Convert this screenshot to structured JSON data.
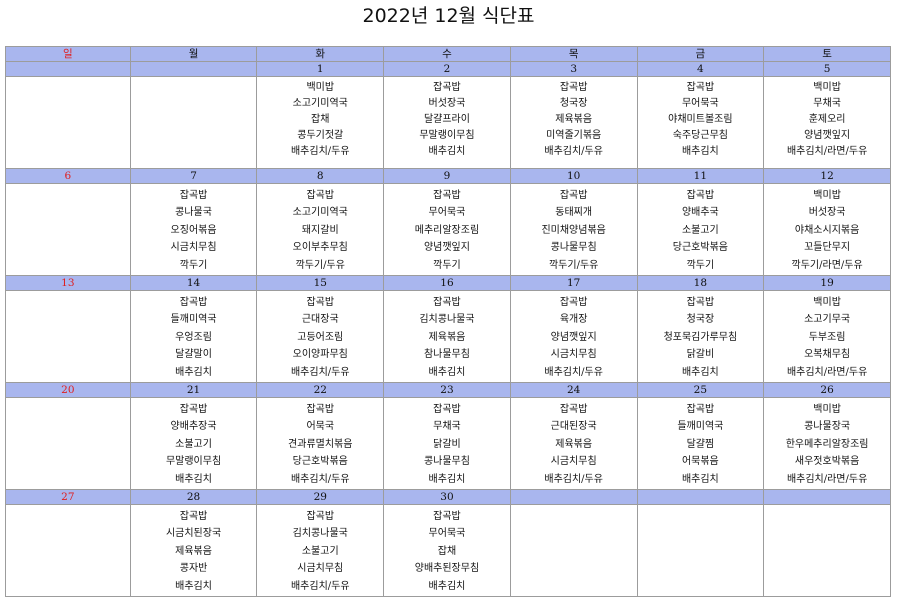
{
  "title": "2022년 12월 식단표",
  "weekdays": [
    "일",
    "월",
    "화",
    "수",
    "목",
    "금",
    "토"
  ],
  "weeks": [
    {
      "dates": [
        "",
        "",
        "1",
        "2",
        "3",
        "4",
        "5"
      ],
      "menus": [
        [],
        [],
        [
          "백미밥",
          "소고기미역국",
          "잡채",
          "콩두기젓갈",
          "배추김치/두유"
        ],
        [
          "잡곡밥",
          "버섯장국",
          "달걀프라이",
          "무말랭이무침",
          "배추김치"
        ],
        [
          "잡곡밥",
          "청국장",
          "제육볶음",
          "미역줄기볶음",
          "배추김치/두유"
        ],
        [
          "잡곡밥",
          "무어묵국",
          "야채미트볼조림",
          "숙주당근무침",
          "배추김치"
        ],
        [
          "백미밥",
          "무채국",
          "훈제오리",
          "양념깻잎지",
          "배추김치/라면/두유"
        ]
      ]
    },
    {
      "dates": [
        "6",
        "7",
        "8",
        "9",
        "10",
        "11",
        "12"
      ],
      "menus": [
        [],
        [
          "잡곡밥",
          "콩나물국",
          "오징어볶음",
          "시금치무침",
          "깍두기"
        ],
        [
          "잡곡밥",
          "소고기미역국",
          "돼지갈비",
          "오이부추무침",
          "깍두기/두유"
        ],
        [
          "잡곡밥",
          "무어묵국",
          "메추리알장조림",
          "양념깻잎지",
          "깍두기"
        ],
        [
          "잡곡밥",
          "동태찌개",
          "진미채양념볶음",
          "콩나물무침",
          "깍두기/두유"
        ],
        [
          "잡곡밥",
          "양배추국",
          "소불고기",
          "당근호박볶음",
          "깍두기"
        ],
        [
          "백미밥",
          "버섯장국",
          "야채소시지볶음",
          "꼬들단무지",
          "깍두기/라면/두유"
        ]
      ]
    },
    {
      "dates": [
        "13",
        "14",
        "15",
        "16",
        "17",
        "18",
        "19"
      ],
      "menus": [
        [],
        [
          "잡곡밥",
          "들깨미역국",
          "우엉조림",
          "달걀말이",
          "배추김치"
        ],
        [
          "잡곡밥",
          "근대장국",
          "고등어조림",
          "오이양파무침",
          "배추김치/두유"
        ],
        [
          "잡곡밥",
          "김치콩나물국",
          "제육볶음",
          "참나물무침",
          "배추김치"
        ],
        [
          "잡곡밥",
          "육개장",
          "양념깻잎지",
          "시금치무침",
          "배추김치/두유"
        ],
        [
          "잡곡밥",
          "청국장",
          "청포묵김가루무침",
          "닭갈비",
          "배추김치"
        ],
        [
          "백미밥",
          "소고기무국",
          "두부조림",
          "오복채무침",
          "배추김치/라면/두유"
        ]
      ]
    },
    {
      "dates": [
        "20",
        "21",
        "22",
        "23",
        "24",
        "25",
        "26"
      ],
      "menus": [
        [],
        [
          "잡곡밥",
          "양배추장국",
          "소불고기",
          "무말랭이무침",
          "배추김치"
        ],
        [
          "잡곡밥",
          "어묵국",
          "견과류멸치볶음",
          "당근호박볶음",
          "배추김치/두유"
        ],
        [
          "잡곡밥",
          "무채국",
          "닭갈비",
          "콩나물무침",
          "배추김치"
        ],
        [
          "잡곡밥",
          "근대된장국",
          "제육볶음",
          "시금치무침",
          "배추김치/두유"
        ],
        [
          "잡곡밥",
          "들깨미역국",
          "달걀찜",
          "어묵볶음",
          "배추김치"
        ],
        [
          "백미밥",
          "콩나물장국",
          "한우메추리알장조림",
          "새우젓호박볶음",
          "배추김치/라면/두유"
        ]
      ]
    },
    {
      "dates": [
        "27",
        "28",
        "29",
        "30",
        "",
        "",
        ""
      ],
      "menus": [
        [],
        [
          "잡곡밥",
          "시금치된장국",
          "제육볶음",
          "콩자반",
          "배추김치"
        ],
        [
          "잡곡밥",
          "김치콩나물국",
          "소불고기",
          "시금치무침",
          "배추김치/두유"
        ],
        [
          "잡곡밥",
          "무어묵국",
          "잡채",
          "양배추된장무침",
          "배추김치"
        ],
        [],
        [],
        []
      ]
    }
  ]
}
